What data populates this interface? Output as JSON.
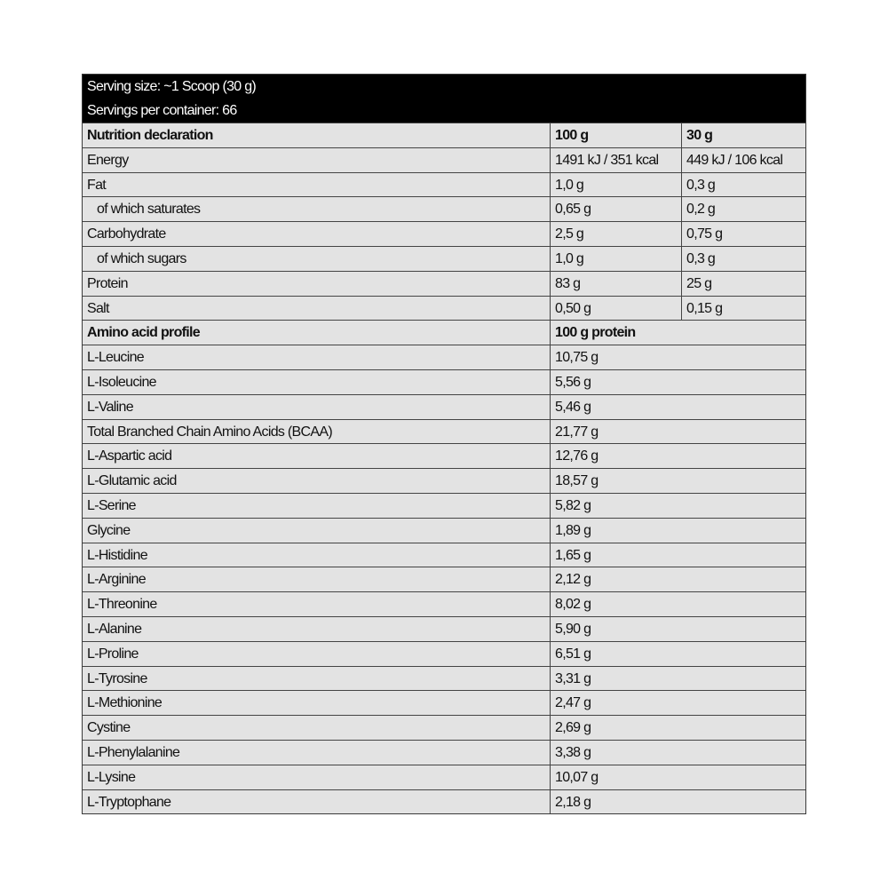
{
  "header": {
    "serving_size": "Serving size: ~1 Scoop (30 g)",
    "servings_per_container": "Servings per container: 66"
  },
  "nutrition": {
    "heading": "Nutrition declaration",
    "col_100g": "100 g",
    "col_30g": "30 g",
    "rows": [
      {
        "label": "Energy",
        "per100": "1491 kJ / 351 kcal",
        "per30": "449 kJ / 106 kcal",
        "indent": false
      },
      {
        "label": "Fat",
        "per100": "1,0 g",
        "per30": "0,3 g",
        "indent": false
      },
      {
        "label": "of which saturates",
        "per100": "0,65 g",
        "per30": "0,2 g",
        "indent": true
      },
      {
        "label": "Carbohydrate",
        "per100": "2,5 g",
        "per30": "0,75 g",
        "indent": false
      },
      {
        "label": "of which sugars",
        "per100": "1,0 g",
        "per30": "0,3 g",
        "indent": true
      },
      {
        "label": "Protein",
        "per100": "83 g",
        "per30": "25 g",
        "indent": false
      },
      {
        "label": "Salt",
        "per100": "0,50 g",
        "per30": "0,15 g",
        "indent": false
      }
    ]
  },
  "amino": {
    "heading": "Amino acid profile",
    "col": "100 g protein",
    "rows": [
      {
        "label": "L-Leucine",
        "value": "10,75 g"
      },
      {
        "label": "L-Isoleucine",
        "value": "5,56 g"
      },
      {
        "label": "L-Valine",
        "value": "5,46 g"
      },
      {
        "label": "Total Branched Chain Amino Acids (BCAA)",
        "value": "21,77 g"
      },
      {
        "label": "L-Aspartic acid",
        "value": "12,76 g"
      },
      {
        "label": "L-Glutamic acid",
        "value": "18,57 g"
      },
      {
        "label": "L-Serine",
        "value": "5,82 g"
      },
      {
        "label": "Glycine",
        "value": "1,89 g"
      },
      {
        "label": "L-Histidine",
        "value": "1,65 g"
      },
      {
        "label": "L-Arginine",
        "value": "2,12 g"
      },
      {
        "label": "L-Threonine",
        "value": "8,02 g"
      },
      {
        "label": "L-Alanine",
        "value": "5,90 g"
      },
      {
        "label": "L-Proline",
        "value": "6,51 g"
      },
      {
        "label": "L-Tyrosine",
        "value": "3,31 g"
      },
      {
        "label": "L-Methionine",
        "value": "2,47 g"
      },
      {
        "label": "Cystine",
        "value": "2,69 g"
      },
      {
        "label": "L-Phenylalanine",
        "value": "3,38 g"
      },
      {
        "label": "L-Lysine",
        "value": "10,07 g"
      },
      {
        "label": "L-Tryptophane",
        "value": "2,18 g"
      }
    ]
  }
}
